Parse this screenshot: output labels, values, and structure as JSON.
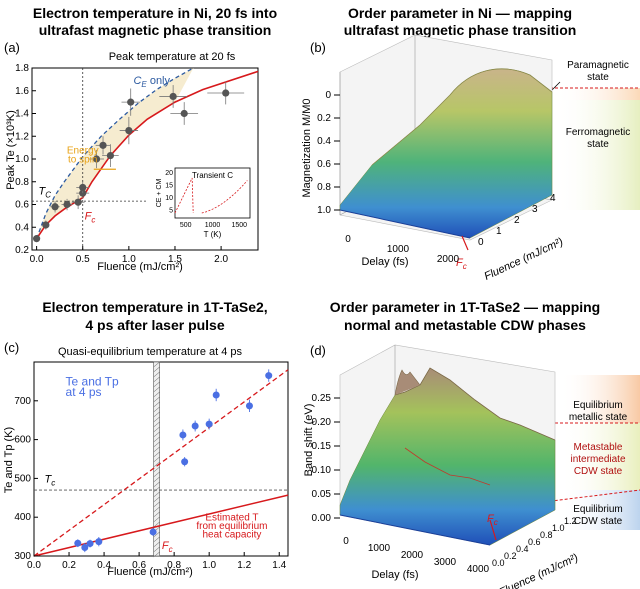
{
  "chart_data": [
    {
      "type": "scatter",
      "panel": "(a)",
      "title_line1": "Electron temperature in Ni, 20 fs into",
      "title_line2": "ultrafast magnetic phase transition",
      "subtitle": "Peak temperature at 20 fs",
      "xlabel": "Fluence (mJ/cm²)",
      "ylabel": "Peak Te (×10³K)",
      "xlim": [
        -0.05,
        2.4
      ],
      "ylim": [
        0.2,
        1.8
      ],
      "xticks": [
        0.0,
        0.5,
        1.0,
        1.5,
        2.0
      ],
      "yticks": [
        0.2,
        0.4,
        0.6,
        0.8,
        1.0,
        1.2,
        1.4,
        1.6,
        1.8
      ],
      "points": [
        {
          "x": 0.0,
          "y": 0.3,
          "xerr": 0.02,
          "yerr": 0.03
        },
        {
          "x": 0.1,
          "y": 0.42,
          "xerr": 0.03,
          "yerr": 0.04
        },
        {
          "x": 0.2,
          "y": 0.58,
          "xerr": 0.05,
          "yerr": 0.05
        },
        {
          "x": 0.33,
          "y": 0.6,
          "xerr": 0.06,
          "yerr": 0.05
        },
        {
          "x": 0.45,
          "y": 0.62,
          "xerr": 0.07,
          "yerr": 0.06
        },
        {
          "x": 0.5,
          "y": 0.7,
          "xerr": 0.07,
          "yerr": 0.05
        },
        {
          "x": 0.5,
          "y": 0.75,
          "xerr": 0.07,
          "yerr": 0.05
        },
        {
          "x": 0.65,
          "y": 1.0,
          "xerr": 0.08,
          "yerr": 0.08
        },
        {
          "x": 0.72,
          "y": 1.12,
          "xerr": 0.08,
          "yerr": 0.08
        },
        {
          "x": 0.8,
          "y": 1.03,
          "xerr": 0.09,
          "yerr": 0.1
        },
        {
          "x": 1.0,
          "y": 1.25,
          "xerr": 0.1,
          "yerr": 0.12
        },
        {
          "x": 1.02,
          "y": 1.5,
          "xerr": 0.1,
          "yerr": 0.12
        },
        {
          "x": 1.48,
          "y": 1.55,
          "xerr": 0.15,
          "yerr": 0.1
        },
        {
          "x": 1.6,
          "y": 1.4,
          "xerr": 0.15,
          "yerr": 0.1
        },
        {
          "x": 2.05,
          "y": 1.58,
          "xerr": 0.2,
          "yerr": 0.1
        }
      ],
      "series": [
        {
          "name": "CE only",
          "x": [
            0.0,
            0.1,
            0.2,
            0.3,
            0.5,
            0.7,
            0.9,
            1.1,
            1.3,
            1.5,
            1.7
          ],
          "y": [
            0.3,
            0.52,
            0.68,
            0.8,
            1.02,
            1.2,
            1.35,
            1.49,
            1.61,
            1.71,
            1.8
          ]
        },
        {
          "name": "Red model",
          "x": [
            0.0,
            0.1,
            0.2,
            0.3,
            0.4,
            0.5,
            0.6,
            0.8,
            1.0,
            1.2,
            1.5,
            1.8,
            2.4
          ],
          "y": [
            0.3,
            0.42,
            0.5,
            0.56,
            0.61,
            0.66,
            0.8,
            1.03,
            1.21,
            1.35,
            1.5,
            1.61,
            1.77
          ]
        }
      ],
      "Fc_x": 0.5,
      "Tc_y": 0.63,
      "labels": {
        "ce_only": "C",
        "ce_only_sub": "E",
        "ce_only_suffix": " only",
        "energy_to_spin": "Energy\nto spin",
        "tc": "T",
        "tc_sub": "C",
        "fc": "F",
        "fc_sub": "c"
      },
      "inset": {
        "title": "Transient C",
        "xlabel": "T (K)",
        "ylabel": "CE + CM",
        "xticks": [
          500,
          1000,
          1500
        ],
        "yticks": [
          5,
          10,
          15,
          20
        ]
      }
    },
    {
      "type": "surface",
      "panel": "(b)",
      "title_line1": "Order parameter in Ni — mapping",
      "title_line2": "ultrafast magnetic phase transition",
      "zlabel": "Magnetization M/M0",
      "zticks": [
        0,
        0.2,
        0.4,
        0.6,
        0.8,
        1.0
      ],
      "xlabel": "Delay (fs)",
      "xticks": [
        0,
        1000,
        2000
      ],
      "ylabel": "Fluence (mJ/cm²)",
      "yticks": [
        0,
        1,
        2,
        3,
        4
      ],
      "fc_label": "F",
      "fc_sub": "c",
      "states": [
        "Paramagnetic\nstate",
        "Ferromagnetic\nstate"
      ]
    },
    {
      "type": "scatter",
      "panel": "(c)",
      "title_line1": "Electron temperature in 1T-TaSe2,",
      "title_line2": "4 ps after laser pulse",
      "subtitle": "Quasi-equilibrium temperature at 4 ps",
      "xlabel": "Fluence (mJ/cm²)",
      "ylabel": "Te and Tp (K)",
      "xlim": [
        0.0,
        1.45
      ],
      "ylim": [
        300,
        800
      ],
      "xticks": [
        0.0,
        0.2,
        0.4,
        0.6,
        0.8,
        1.0,
        1.2,
        1.4
      ],
      "yticks": [
        300,
        400,
        500,
        600,
        700
      ],
      "points": [
        {
          "x": 0.25,
          "y": 333,
          "yerr": 10
        },
        {
          "x": 0.29,
          "y": 322,
          "yerr": 12
        },
        {
          "x": 0.32,
          "y": 332,
          "yerr": 10
        },
        {
          "x": 0.37,
          "y": 337,
          "yerr": 12
        },
        {
          "x": 0.68,
          "y": 362,
          "yerr": 10
        },
        {
          "x": 0.85,
          "y": 612,
          "yerr": 14
        },
        {
          "x": 0.86,
          "y": 543,
          "yerr": 12
        },
        {
          "x": 0.92,
          "y": 635,
          "yerr": 14
        },
        {
          "x": 1.0,
          "y": 640,
          "yerr": 14
        },
        {
          "x": 1.04,
          "y": 715,
          "yerr": 16
        },
        {
          "x": 1.23,
          "y": 687,
          "yerr": 16
        },
        {
          "x": 1.34,
          "y": 765,
          "yerr": 16
        }
      ],
      "series": [
        {
          "name": "Dashed fit",
          "x": [
            0.0,
            1.45
          ],
          "y": [
            300,
            780
          ]
        },
        {
          "name": "Estimated T from equilibrium heat capacity",
          "x": [
            0.0,
            1.45
          ],
          "y": [
            300,
            457
          ]
        }
      ],
      "Fc_x": 0.7,
      "Tc_y": 470,
      "labels": {
        "legend_line1": "Te and Tp",
        "legend_line2": "at 4 ps",
        "tc": "T",
        "tc_sub": "c",
        "fc": "F",
        "fc_sub": "c",
        "estimated_line1": "Estimated T",
        "estimated_line2": "from equilibrium",
        "estimated_line3": "heat capacity"
      }
    },
    {
      "type": "surface",
      "panel": "(d)",
      "title_line1": "Order parameter in 1T-TaSe2 — mapping",
      "title_line2": "normal and metastable CDW phases",
      "zlabel": "Band shift (eV)",
      "zticks": [
        0.0,
        0.05,
        0.1,
        0.15,
        0.2,
        0.25
      ],
      "xlabel": "Delay (fs)",
      "xticks": [
        0,
        1000,
        2000,
        3000,
        4000
      ],
      "ylabel": "Fluence (mJ/cm²)",
      "yticks": [
        0.0,
        0.2,
        0.4,
        0.6,
        0.8,
        1.0,
        1.2
      ],
      "fc_label": "F",
      "fc_sub": "c",
      "states": [
        "Equilibrium\nmetallic state",
        "Metastable\nintermediate\nCDW state",
        "Equilibrium\nCDW state"
      ]
    }
  ],
  "colors": {
    "red": "#d7191c",
    "blue": "#2c5aa0",
    "orange": "#e8a317",
    "band_fill": "#f6ecd0",
    "marker_gray": "#555555",
    "marker_blue": "#4a6fe3"
  }
}
